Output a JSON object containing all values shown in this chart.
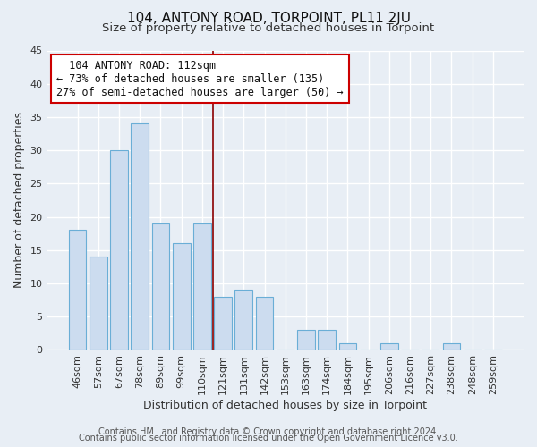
{
  "title": "104, ANTONY ROAD, TORPOINT, PL11 2JU",
  "subtitle": "Size of property relative to detached houses in Torpoint",
  "xlabel": "Distribution of detached houses by size in Torpoint",
  "ylabel": "Number of detached properties",
  "bar_labels": [
    "46sqm",
    "57sqm",
    "67sqm",
    "78sqm",
    "89sqm",
    "99sqm",
    "110sqm",
    "121sqm",
    "131sqm",
    "142sqm",
    "153sqm",
    "163sqm",
    "174sqm",
    "184sqm",
    "195sqm",
    "206sqm",
    "216sqm",
    "227sqm",
    "238sqm",
    "248sqm",
    "259sqm"
  ],
  "bar_heights": [
    18,
    14,
    30,
    34,
    19,
    16,
    19,
    8,
    9,
    8,
    0,
    3,
    3,
    1,
    0,
    1,
    0,
    0,
    1,
    0,
    0
  ],
  "bar_color": "#ccdcef",
  "bar_edge_color": "#6aaed6",
  "vline_position": 6.5,
  "vline_color": "#8b0000",
  "annotation_title": "104 ANTONY ROAD: 112sqm",
  "annotation_line1": "← 73% of detached houses are smaller (135)",
  "annotation_line2": "27% of semi-detached houses are larger (50) →",
  "annotation_box_color": "#ffffff",
  "annotation_box_edge": "#cc0000",
  "ylim": [
    0,
    45
  ],
  "yticks": [
    0,
    5,
    10,
    15,
    20,
    25,
    30,
    35,
    40,
    45
  ],
  "footer1": "Contains HM Land Registry data © Crown copyright and database right 2024.",
  "footer2": "Contains public sector information licensed under the Open Government Licence v3.0.",
  "bg_color": "#e8eef5",
  "grid_color": "#ffffff",
  "title_fontsize": 11,
  "subtitle_fontsize": 9.5,
  "xlabel_fontsize": 9,
  "ylabel_fontsize": 9,
  "tick_fontsize": 8,
  "footer_fontsize": 7,
  "annotation_fontsize": 8.5
}
